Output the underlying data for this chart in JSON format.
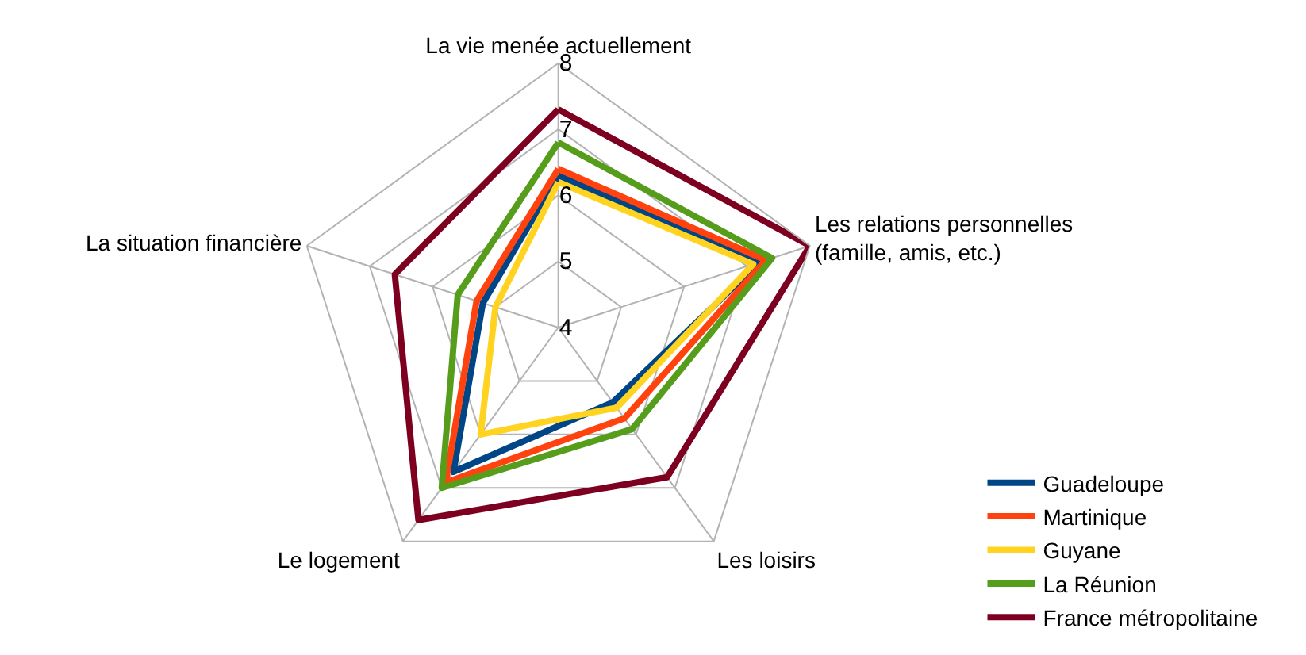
{
  "chart_data": {
    "type": "radar",
    "categories": [
      "La vie menée actuellement",
      "Les relations personnelles\n(famille, amis, etc.)",
      "Les loisirs",
      "Le logement",
      "La situation financière"
    ],
    "series": [
      {
        "name": "Guadeloupe",
        "color": "#004586",
        "values": [
          6.3,
          7.2,
          5.4,
          6.7,
          5.2
        ]
      },
      {
        "name": "Martinique",
        "color": "#ff420e",
        "values": [
          6.4,
          7.3,
          5.7,
          6.9,
          5.3
        ]
      },
      {
        "name": "Guyane",
        "color": "#ffd320",
        "values": [
          6.2,
          7.1,
          5.5,
          6.0,
          5.0
        ]
      },
      {
        "name": "La Réunion",
        "color": "#579d1c",
        "values": [
          6.8,
          7.4,
          5.9,
          7.0,
          5.6
        ]
      },
      {
        "name": "France métropolitaine",
        "color": "#7e0021",
        "values": [
          7.3,
          8.0,
          6.8,
          7.6,
          6.6
        ]
      }
    ],
    "ylim": [
      4,
      8
    ],
    "yticks": [
      4,
      5,
      6,
      7,
      8
    ],
    "grid": true,
    "legend": "bottom right",
    "marker": "none",
    "line_style": "solid"
  }
}
